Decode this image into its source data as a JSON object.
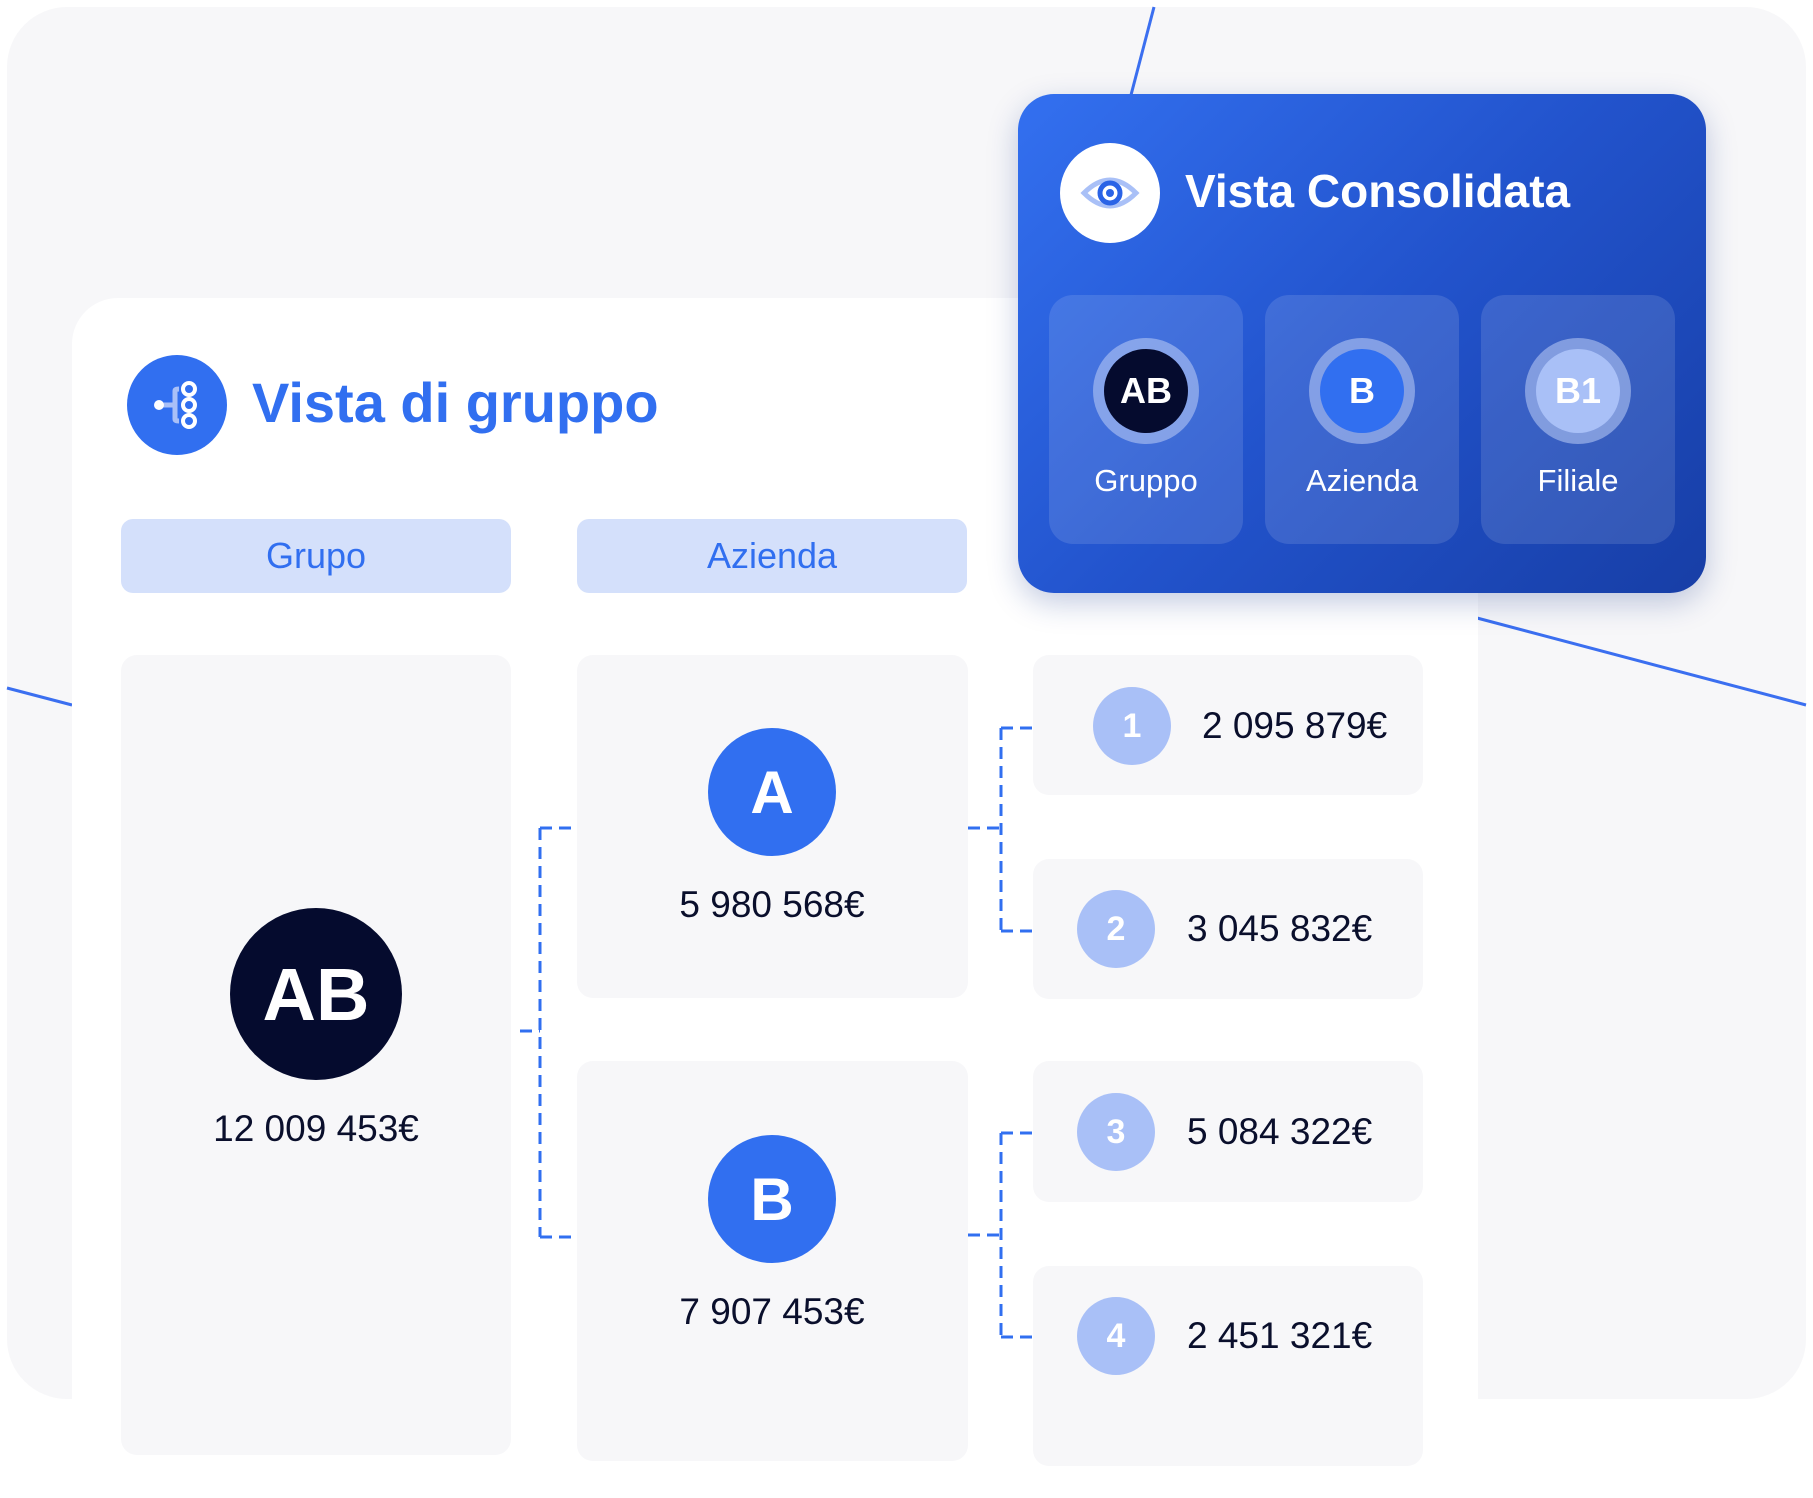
{
  "colors": {
    "accent": "#316ff0",
    "dark": "#050b2e",
    "light": "#a9c0f7",
    "tab_bg": "#d4e0fb"
  },
  "group_view": {
    "icon": "hierarchy-icon",
    "title": "Vista di gruppo",
    "tabs": [
      "Grupo",
      "Azienda"
    ],
    "group": {
      "initials": "AB",
      "value": "12 009 453€"
    },
    "companies": [
      {
        "initials": "A",
        "value": "5 980 568€",
        "branches": [
          {
            "number": "1",
            "value": "2 095 879€"
          },
          {
            "number": "2",
            "value": "3 045 832€"
          }
        ]
      },
      {
        "initials": "B",
        "value": "7 907 453€",
        "branches": [
          {
            "number": "3",
            "value": "5 084 322€"
          },
          {
            "number": "4",
            "value": "2 451 321€"
          }
        ]
      }
    ]
  },
  "consolidated_view": {
    "icon": "eye-icon",
    "title": "Vista Consolidata",
    "items": [
      {
        "initials": "AB",
        "label": "Gruppo"
      },
      {
        "initials": "B",
        "label": "Azienda"
      },
      {
        "initials": "B1",
        "label": "Filiale"
      }
    ]
  }
}
